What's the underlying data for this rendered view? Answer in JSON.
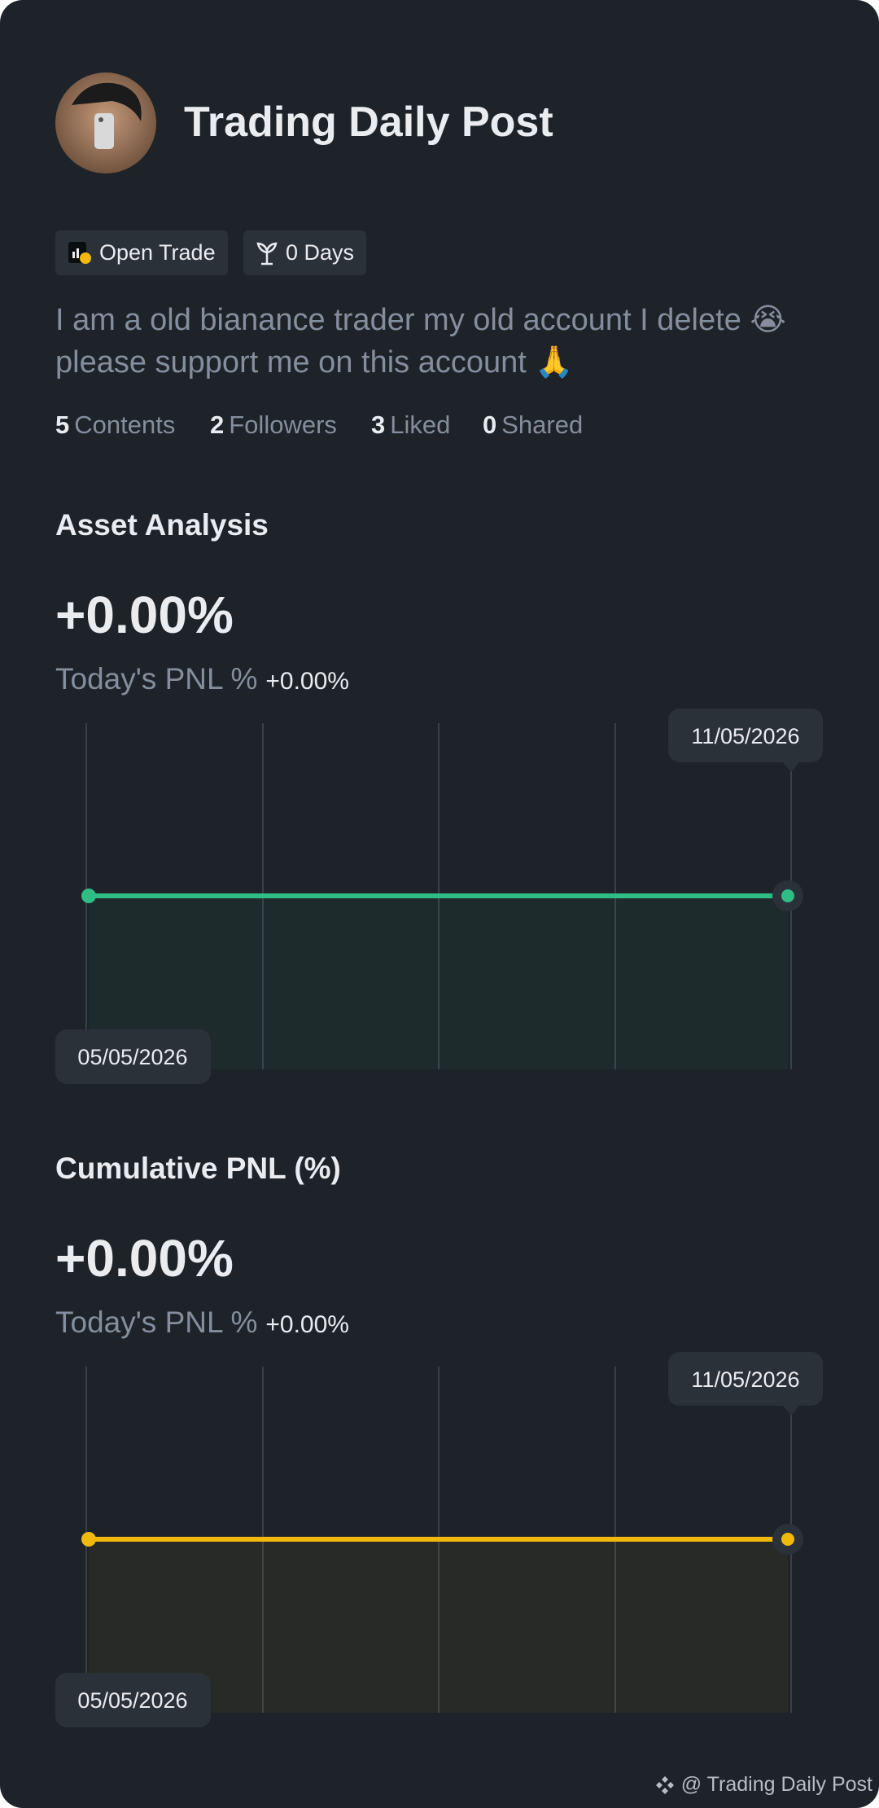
{
  "profile": {
    "name": "Trading Daily Post",
    "badges": [
      "Open Trade",
      "0 Days"
    ],
    "bio": [
      "I am a old bianance trader my old account I delete 😭",
      "please support me on this account 🙏"
    ],
    "stats": [
      {
        "value": 5,
        "label": "Contents"
      },
      {
        "value": 2,
        "label": "Followers"
      },
      {
        "value": 3,
        "label": "Liked"
      },
      {
        "value": 0,
        "label": "Shared"
      }
    ]
  },
  "charts": [
    {
      "type": "line",
      "title": "Asset Analysis",
      "value": "+0.00%",
      "subtitle": "Today's PNL %",
      "subtitle_value": "+0.00%",
      "x": [
        "05/05/2026",
        "11/05/2026"
      ],
      "values": [
        0,
        0
      ],
      "color": "#2ebd85"
    },
    {
      "type": "line",
      "title": "Cumulative PNL (%)",
      "value": "+0.00%",
      "subtitle": "Today's PNL %",
      "subtitle_value": "+0.00%",
      "x": [
        "05/05/2026",
        "11/05/2026"
      ],
      "values": [
        0,
        0
      ],
      "color": "#f0b90b"
    }
  ],
  "footer": "@ Trading Daily Post"
}
